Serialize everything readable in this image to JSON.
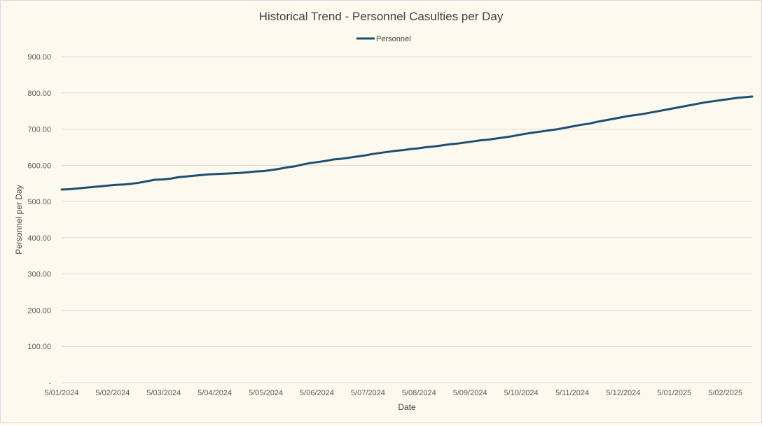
{
  "chart_data": {
    "type": "line",
    "title": "Historical Trend - Personnel Casulties per Day",
    "xlabel": "Date",
    "ylabel": "Personnel per Day",
    "ylim": [
      0,
      900
    ],
    "yticks": [
      0,
      100,
      200,
      300,
      400,
      500,
      600,
      700,
      800,
      900
    ],
    "ytick_labels": [
      "-",
      "100.00",
      "200.00",
      "300.00",
      "400.00",
      "500.00",
      "600.00",
      "700.00",
      "800.00",
      "900.00"
    ],
    "x_tick_labels": [
      "5/01/2024",
      "5/02/2024",
      "5/03/2024",
      "5/04/2024",
      "5/05/2024",
      "5/06/2024",
      "5/07/2024",
      "5/08/2024",
      "5/09/2024",
      "5/10/2024",
      "5/11/2024",
      "5/12/2024",
      "5/01/2025",
      "5/02/2025"
    ],
    "grid": true,
    "legend_position": "top",
    "series": [
      {
        "name": "Personnel",
        "color": "#1f4e6e",
        "values": [
          533,
          534,
          536,
          538,
          540,
          542,
          544,
          546,
          547,
          549,
          552,
          556,
          560,
          561,
          563,
          567,
          569,
          571,
          573,
          575,
          576,
          577,
          578,
          579,
          581,
          583,
          584,
          587,
          590,
          594,
          597,
          602,
          606,
          609,
          612,
          616,
          618,
          621,
          624,
          627,
          631,
          634,
          637,
          640,
          642,
          645,
          647,
          650,
          652,
          655,
          658,
          660,
          663,
          666,
          669,
          671,
          674,
          677,
          680,
          684,
          688,
          691,
          694,
          697,
          700,
          704,
          708,
          712,
          715,
          720,
          724,
          728,
          732,
          736,
          739,
          742,
          746,
          750,
          754,
          758,
          762,
          766,
          770,
          774,
          777,
          780,
          783,
          786,
          788,
          790
        ]
      }
    ]
  }
}
